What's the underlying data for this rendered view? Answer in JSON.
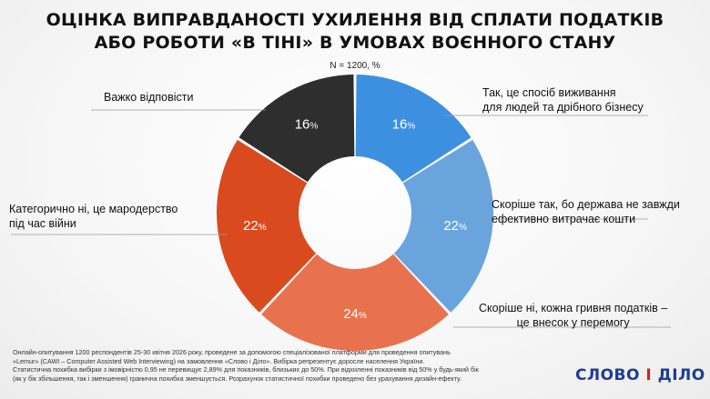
{
  "header": {
    "title_line1": "ОЦІНКА ВИПРАВДАНОСТІ УХИЛЕННЯ ВІД СПЛАТИ ПОДАТКІВ",
    "title_line2": "АБО РОБОТИ «В ТІНІ» В УМОВАХ ВОЄННОГО СТАНУ",
    "subtitle": "N = 1200, %"
  },
  "chart_data": {
    "type": "pie",
    "unit": "%",
    "slices": [
      {
        "label_lines": [
          "Так, це спосіб виживання",
          "для людей та дрібного бізнесу"
        ],
        "value": 16,
        "color": "#3d8fe0"
      },
      {
        "label_lines": [
          "Скоріше так, бо держава не завжди",
          "ефективно витрачає кошти"
        ],
        "value": 22,
        "color": "#6aa4dd"
      },
      {
        "label_lines": [
          "Скоріше ні, кожна гривня податків –",
          "це внесок у перемогу"
        ],
        "value": 24,
        "color": "#e8724d"
      },
      {
        "label_lines": [
          "Категорично ні, це мародерство",
          "під час війни"
        ],
        "value": 22,
        "color": "#d94a1f"
      },
      {
        "label_lines": [
          "Важко відповісти"
        ],
        "value": 16,
        "color": "#2e2e2e"
      }
    ]
  },
  "footer": {
    "lines": [
      "Онлайн-опитування 1200 респондентів 25-30 квітня 2026 року, проведене за допомогою спеціалізованої платформи для проведення опитувань",
      "«Lemur» (CAWI – Computer Assisted Web Interviewing) на замовлення «Слово і Діло». Вибірка репрезентує доросле населення України.",
      "Статистична похибка вибірки з імовірністю 0,95 не перевищує 2,89% для показників, близьких до 50%. При відхиленні показників від 50% у будь-який бік",
      "(як у бік збільшення, так і зменшення) гранична похибка зменшується. Розрахунок статистичної похибки проведено без урахування дизайн-ефекту."
    ]
  },
  "logo": {
    "left": "СЛОВО",
    "middle": "І",
    "right": "ДІЛО"
  }
}
